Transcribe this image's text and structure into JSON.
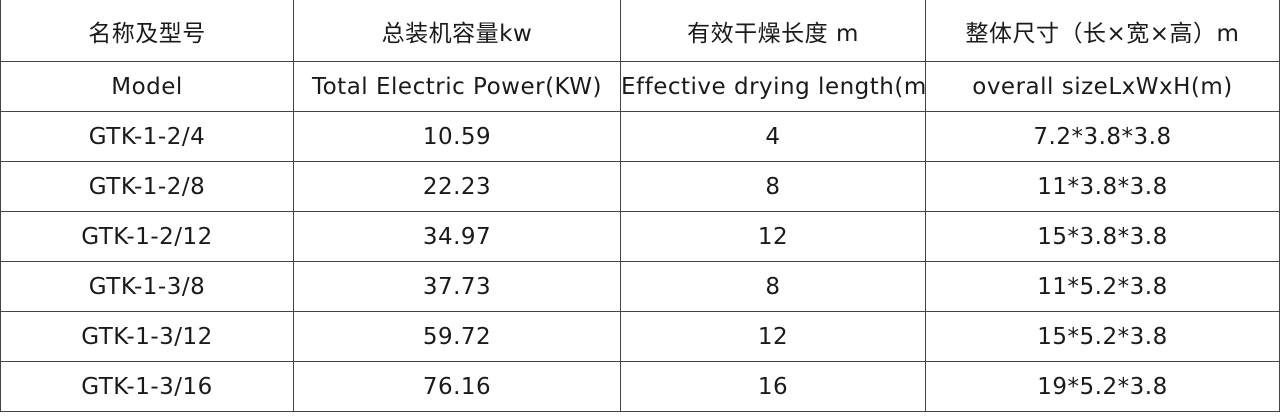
{
  "table": {
    "header_cn": [
      "名称及型号",
      "总装机容量kw",
      "有效干燥长度 m",
      "整体尺寸（长×宽×高）m"
    ],
    "header_en": [
      "Model",
      "Total Electric Power(KW)",
      "Effective drying length(m)",
      "overall sizeLxWxH(m)"
    ],
    "rows": [
      [
        "GTK-1-2/4",
        "10.59",
        "4",
        "7.2*3.8*3.8"
      ],
      [
        "GTK-1-2/8",
        "22.23",
        "8",
        "11*3.8*3.8"
      ],
      [
        "GTK-1-2/12",
        "34.97",
        "12",
        "15*3.8*3.8"
      ],
      [
        "GTK-1-3/8",
        "37.73",
        "8",
        "11*5.2*3.8"
      ],
      [
        "GTK-1-3/12",
        "59.72",
        "12",
        "15*5.2*3.8"
      ],
      [
        "GTK-1-3/16",
        "76.16",
        "16",
        "19*5.2*3.8"
      ]
    ]
  }
}
